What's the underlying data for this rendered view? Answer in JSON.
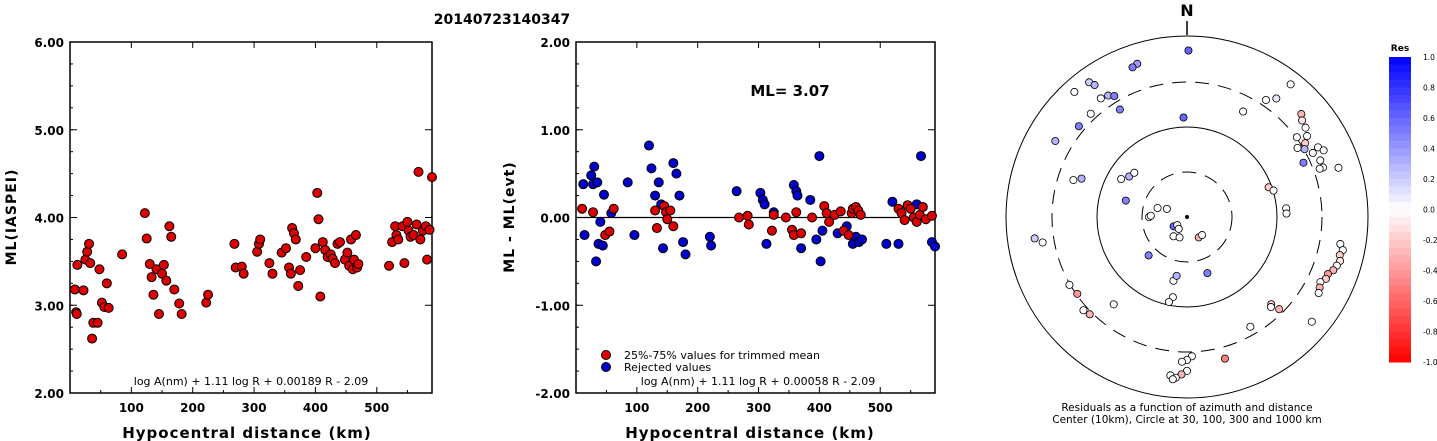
{
  "title": "20140723140347",
  "chart_data": [
    {
      "type": "scatter",
      "ylabel": "ML(IASPEI)",
      "xlabel": "Hypocentral distance (km)",
      "xlim": [
        0,
        590
      ],
      "ylim": [
        2.0,
        6.0
      ],
      "x_ticks": [
        "100",
        "200",
        "300",
        "400",
        "500"
      ],
      "y_ticks": [
        "2.00",
        "3.00",
        "4.00",
        "5.00",
        "6.00"
      ],
      "formula": "log A(nm) + 1.11 log R + 0.00189 R - 2.09",
      "point_color": "#dd0000",
      "points": [
        [
          8,
          3.18
        ],
        [
          10,
          2.92
        ],
        [
          11,
          2.9
        ],
        [
          12,
          3.46
        ],
        [
          22,
          3.17
        ],
        [
          25,
          3.52
        ],
        [
          28,
          3.61
        ],
        [
          31,
          3.7
        ],
        [
          33,
          3.48
        ],
        [
          36,
          2.62
        ],
        [
          38,
          2.8
        ],
        [
          45,
          2.8
        ],
        [
          48,
          3.41
        ],
        [
          52,
          3.03
        ],
        [
          56,
          2.98
        ],
        [
          60,
          3.25
        ],
        [
          63,
          2.97
        ],
        [
          85,
          3.58
        ],
        [
          122,
          4.05
        ],
        [
          125,
          3.76
        ],
        [
          130,
          3.47
        ],
        [
          133,
          3.32
        ],
        [
          136,
          3.12
        ],
        [
          141,
          3.41
        ],
        [
          145,
          2.9
        ],
        [
          150,
          3.36
        ],
        [
          153,
          3.46
        ],
        [
          157,
          3.28
        ],
        [
          162,
          3.9
        ],
        [
          165,
          3.78
        ],
        [
          170,
          3.18
        ],
        [
          178,
          3.02
        ],
        [
          182,
          2.9
        ],
        [
          222,
          3.03
        ],
        [
          225,
          3.12
        ],
        [
          268,
          3.7
        ],
        [
          270,
          3.43
        ],
        [
          280,
          3.44
        ],
        [
          283,
          3.36
        ],
        [
          305,
          3.61
        ],
        [
          308,
          3.7
        ],
        [
          310,
          3.75
        ],
        [
          325,
          3.48
        ],
        [
          330,
          3.36
        ],
        [
          345,
          3.6
        ],
        [
          352,
          3.65
        ],
        [
          357,
          3.43
        ],
        [
          360,
          3.36
        ],
        [
          362,
          3.88
        ],
        [
          365,
          3.82
        ],
        [
          368,
          3.75
        ],
        [
          372,
          3.22
        ],
        [
          375,
          3.4
        ],
        [
          385,
          3.55
        ],
        [
          400,
          3.65
        ],
        [
          403,
          4.28
        ],
        [
          405,
          3.98
        ],
        [
          408,
          3.1
        ],
        [
          412,
          3.72
        ],
        [
          416,
          3.63
        ],
        [
          420,
          3.55
        ],
        [
          425,
          3.58
        ],
        [
          428,
          3.53
        ],
        [
          432,
          3.48
        ],
        [
          436,
          3.7
        ],
        [
          440,
          3.72
        ],
        [
          448,
          3.52
        ],
        [
          452,
          3.6
        ],
        [
          455,
          3.45
        ],
        [
          458,
          3.75
        ],
        [
          461,
          3.41
        ],
        [
          463,
          3.52
        ],
        [
          466,
          3.8
        ],
        [
          468,
          3.43
        ],
        [
          470,
          3.47
        ],
        [
          520,
          3.45
        ],
        [
          525,
          3.72
        ],
        [
          530,
          3.9
        ],
        [
          532,
          3.8
        ],
        [
          535,
          3.75
        ],
        [
          542,
          3.9
        ],
        [
          545,
          3.48
        ],
        [
          550,
          3.95
        ],
        [
          552,
          3.85
        ],
        [
          555,
          3.78
        ],
        [
          560,
          3.8
        ],
        [
          565,
          3.92
        ],
        [
          568,
          4.52
        ],
        [
          571,
          3.75
        ],
        [
          575,
          3.85
        ],
        [
          580,
          3.9
        ],
        [
          582,
          3.52
        ],
        [
          586,
          3.86
        ],
        [
          590,
          4.46
        ]
      ]
    },
    {
      "type": "scatter",
      "ylabel": "ML - ML(evt)",
      "xlabel": "Hypocentral distance (km)",
      "xlim": [
        0,
        590
      ],
      "ylim": [
        -2.0,
        2.0
      ],
      "x_ticks": [
        "100",
        "200",
        "300",
        "400",
        "500"
      ],
      "y_ticks": [
        "-2.00",
        "-1.00",
        "0.00",
        "1.00",
        "2.00"
      ],
      "annotation": "ML= 3.07",
      "formula": "log A(nm) + 1.11 log R + 0.00058 R - 2.09",
      "legend": [
        {
          "label": "25%-75% values for trimmed mean",
          "color": "#dd0000"
        },
        {
          "label": "Rejected values",
          "color": "#0000cc"
        }
      ],
      "series_red": [
        [
          10,
          0.1
        ],
        [
          28,
          0.06
        ],
        [
          48,
          -0.2
        ],
        [
          55,
          -0.16
        ],
        [
          62,
          0.1
        ],
        [
          130,
          0.08
        ],
        [
          133,
          -0.12
        ],
        [
          145,
          0.13
        ],
        [
          148,
          0.06
        ],
        [
          150,
          -0.02
        ],
        [
          155,
          0.08
        ],
        [
          160,
          -0.1
        ],
        [
          268,
          0.0
        ],
        [
          282,
          0.02
        ],
        [
          284,
          -0.08
        ],
        [
          322,
          -0.15
        ],
        [
          325,
          0.03
        ],
        [
          345,
          0.0
        ],
        [
          355,
          -0.14
        ],
        [
          358,
          -0.2
        ],
        [
          362,
          0.06
        ],
        [
          370,
          -0.18
        ],
        [
          388,
          0.0
        ],
        [
          408,
          0.13
        ],
        [
          412,
          0.05
        ],
        [
          416,
          -0.05
        ],
        [
          425,
          0.03
        ],
        [
          435,
          0.07
        ],
        [
          440,
          -0.15
        ],
        [
          448,
          -0.2
        ],
        [
          453,
          0.05
        ],
        [
          455,
          0.1
        ],
        [
          460,
          0.12
        ],
        [
          464,
          0.08
        ],
        [
          468,
          0.03
        ],
        [
          530,
          0.1
        ],
        [
          535,
          0.05
        ],
        [
          540,
          -0.03
        ],
        [
          545,
          0.14
        ],
        [
          550,
          0.1
        ],
        [
          555,
          0.0
        ],
        [
          560,
          -0.05
        ],
        [
          565,
          0.03
        ],
        [
          570,
          0.12
        ],
        [
          575,
          -0.02
        ],
        [
          585,
          0.02
        ]
      ],
      "series_blue": [
        [
          12,
          0.38
        ],
        [
          14,
          -0.2
        ],
        [
          25,
          0.48
        ],
        [
          28,
          0.38
        ],
        [
          30,
          0.58
        ],
        [
          33,
          -0.5
        ],
        [
          35,
          0.4
        ],
        [
          37,
          -0.3
        ],
        [
          40,
          -0.05
        ],
        [
          44,
          -0.32
        ],
        [
          46,
          0.26
        ],
        [
          58,
          0.05
        ],
        [
          85,
          0.4
        ],
        [
          96,
          -0.2
        ],
        [
          120,
          0.82
        ],
        [
          124,
          0.56
        ],
        [
          130,
          0.25
        ],
        [
          136,
          0.4
        ],
        [
          140,
          0.15
        ],
        [
          143,
          -0.35
        ],
        [
          160,
          0.62
        ],
        [
          165,
          0.5
        ],
        [
          170,
          0.25
        ],
        [
          176,
          -0.28
        ],
        [
          180,
          -0.42
        ],
        [
          220,
          -0.22
        ],
        [
          222,
          -0.32
        ],
        [
          264,
          0.3
        ],
        [
          303,
          0.28
        ],
        [
          307,
          0.2
        ],
        [
          310,
          0.15
        ],
        [
          313,
          -0.3
        ],
        [
          325,
          0.06
        ],
        [
          358,
          0.37
        ],
        [
          362,
          0.3
        ],
        [
          364,
          0.25
        ],
        [
          370,
          -0.35
        ],
        [
          385,
          0.2
        ],
        [
          395,
          -0.25
        ],
        [
          400,
          0.7
        ],
        [
          402,
          -0.5
        ],
        [
          405,
          -0.15
        ],
        [
          430,
          -0.18
        ],
        [
          445,
          -0.1
        ],
        [
          455,
          -0.3
        ],
        [
          460,
          -0.22
        ],
        [
          465,
          -0.28
        ],
        [
          470,
          -0.25
        ],
        [
          510,
          -0.3
        ],
        [
          520,
          0.18
        ],
        [
          530,
          -0.3
        ],
        [
          560,
          0.15
        ],
        [
          567,
          0.7
        ],
        [
          585,
          -0.28
        ],
        [
          590,
          -0.33
        ]
      ]
    },
    {
      "type": "polar_scatter",
      "north_label": "N",
      "caption_line1": "Residuals as a function of azimuth and distance",
      "caption_line2": "Center (10km), Circle at 30, 100, 300 and 1000 km",
      "colorbar_title": "Res",
      "colorbar_ticks": [
        "1.0",
        "0.8",
        "0.6",
        "0.4",
        "0.2",
        "0.0",
        "-0.2",
        "-0.4",
        "-0.6",
        "-0.8",
        "-1.0"
      ],
      "points": [
        [
          0.5,
          0.92,
          0.6
        ],
        [
          -18,
          0.89,
          0.4
        ],
        [
          -20,
          0.88,
          0.5
        ],
        [
          -42,
          0.93,
          0.0
        ],
        [
          -36,
          0.92,
          0.2
        ],
        [
          -35,
          0.89,
          0.3
        ],
        [
          -36,
          0.81,
          0.0
        ],
        [
          -33,
          0.8,
          0.3
        ],
        [
          -31,
          0.78,
          0.5
        ],
        [
          -32,
          0.7,
          0.5
        ],
        [
          -43,
          0.78,
          0.0
        ],
        [
          -50,
          0.78,
          0.5
        ],
        [
          -60,
          0.84,
          0.3
        ],
        [
          -2,
          0.55,
          0.6
        ],
        [
          28,
          0.66,
          0.0
        ],
        [
          34,
          0.78,
          0.0
        ],
        [
          37,
          0.82,
          0.1
        ],
        [
          38,
          0.93,
          0.0
        ],
        [
          48,
          0.85,
          -0.3
        ],
        [
          50,
          0.83,
          -0.1
        ],
        [
          53,
          0.82,
          0.0
        ],
        [
          56,
          0.8,
          0.0
        ],
        [
          58,
          0.77,
          -0.2
        ],
        [
          60,
          0.75,
          0.3
        ],
        [
          62,
          0.82,
          0.0
        ],
        [
          64,
          0.84,
          0.0
        ],
        [
          54,
          0.75,
          0.0
        ],
        [
          58,
          0.72,
          0.0
        ],
        [
          63,
          0.78,
          0.0
        ],
        [
          67,
          0.8,
          0.0
        ],
        [
          70,
          0.8,
          0.0
        ],
        [
          65,
          0.71,
          0.5
        ],
        [
          70,
          0.78,
          0.0
        ],
        [
          72,
          0.88,
          0.0
        ],
        [
          100,
          0.86,
          0.0
        ],
        [
          102,
          0.88,
          0.0
        ],
        [
          104,
          0.87,
          -0.2
        ],
        [
          106,
          0.88,
          -0.1
        ],
        [
          108,
          0.87,
          0.0
        ],
        [
          110,
          0.86,
          -0.3
        ],
        [
          112,
          0.84,
          -0.4
        ],
        [
          114,
          0.84,
          -0.2
        ],
        [
          116,
          0.82,
          0.0
        ],
        [
          118,
          0.83,
          -0.3
        ],
        [
          120,
          0.84,
          0.0
        ],
        [
          85,
          0.55,
          0.0
        ],
        [
          88,
          0.55,
          0.0
        ],
        [
          70,
          0.48,
          -0.2
        ],
        [
          73,
          0.5,
          0.0
        ],
        [
          130,
          0.9,
          0.0
        ],
        [
          135,
          0.72,
          -0.3
        ],
        [
          136,
          0.67,
          -0.2
        ],
        [
          137,
          0.68,
          0.0
        ],
        [
          150,
          0.7,
          0.0
        ],
        [
          165,
          0.81,
          -0.5
        ],
        [
          178,
          0.77,
          0.0
        ],
        [
          180,
          0.79,
          0.0
        ],
        [
          182,
          0.8,
          0.0
        ],
        [
          180,
          0.85,
          0.0
        ],
        [
          182,
          0.87,
          -0.3
        ],
        [
          184,
          0.89,
          0.0
        ],
        [
          186,
          0.88,
          0.0
        ],
        [
          185,
          0.9,
          0.0
        ],
        [
          190,
          0.45,
          0.0
        ],
        [
          192,
          0.48,
          0.0
        ],
        [
          192,
          0.36,
          0.0
        ],
        [
          190,
          0.33,
          0.3
        ],
        [
          160,
          0.33,
          0.5
        ],
        [
          220,
          0.63,
          0.0
        ],
        [
          225,
          0.76,
          -0.3
        ],
        [
          228,
          0.77,
          0.0
        ],
        [
          235,
          0.74,
          -0.4
        ],
        [
          240,
          0.75,
          0.0
        ],
        [
          260,
          0.81,
          0.0
        ],
        [
          262,
          0.85,
          0.2
        ],
        [
          150,
          0.13,
          -0.3
        ],
        [
          140,
          0.13,
          0.0
        ],
        [
          300,
          0.42,
          0.0
        ],
        [
          305,
          0.39,
          0.3
        ],
        [
          310,
          0.38,
          0.0
        ],
        [
          235,
          0.09,
          0.6
        ],
        [
          230,
          0.07,
          0.0
        ],
        [
          215,
          0.08,
          0.0
        ],
        [
          215,
          0.13,
          0.0
        ],
        [
          200,
          0.12,
          0.0
        ],
        [
          225,
          0.3,
          0.5
        ],
        [
          290,
          0.62,
          0.3
        ],
        [
          288,
          0.66,
          0.0
        ],
        [
          285,
          0.35,
          0.5
        ],
        [
          292,
          0.12,
          0.0
        ],
        [
          287,
          0.17,
          0.0
        ],
        [
          270,
          0.21,
          0.0
        ],
        [
          272,
          0.2,
          0.0
        ]
      ]
    }
  ]
}
